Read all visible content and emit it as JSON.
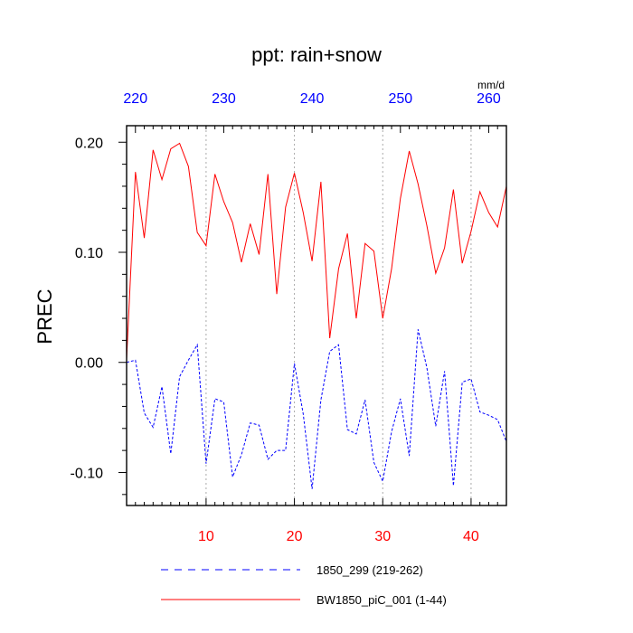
{
  "chart_data": {
    "type": "line",
    "title": "ppt: rain+snow",
    "ylabel": "PREC",
    "units": "mm/d",
    "xlim": [
      1,
      44
    ],
    "ylim": [
      -0.13,
      0.215
    ],
    "grid": "vertical dotted at labeled x ticks",
    "legend": "bottom",
    "bottom_axis": {
      "ticks": [
        10,
        20,
        30,
        40
      ],
      "labels": [
        "10",
        "20",
        "30",
        "40"
      ],
      "color": "#ff0000"
    },
    "top_axis": {
      "offset": 218,
      "ticks": [
        220,
        230,
        240,
        250,
        260
      ],
      "labels": [
        "220",
        "230",
        "240",
        "250",
        "260"
      ],
      "color": "#0000ff"
    },
    "y_axis": {
      "ticks": [
        0.2,
        0.1,
        0.0,
        -0.1
      ],
      "labels": [
        "0.20",
        "0.10",
        "0.00",
        "-0.10"
      ]
    },
    "x": [
      1,
      2,
      3,
      4,
      5,
      6,
      7,
      8,
      9,
      10,
      11,
      12,
      13,
      14,
      15,
      16,
      17,
      18,
      19,
      20,
      21,
      22,
      23,
      24,
      25,
      26,
      27,
      28,
      29,
      30,
      31,
      32,
      33,
      34,
      35,
      36,
      37,
      38,
      39,
      40,
      41,
      42,
      43,
      44
    ],
    "series": [
      {
        "name": "BW1850_piC_001 (1-44)",
        "color": "#ff0000",
        "dash": "solid",
        "values": [
          0.003,
          0.173,
          0.113,
          0.193,
          0.166,
          0.194,
          0.199,
          0.178,
          0.118,
          0.106,
          0.171,
          0.146,
          0.127,
          0.091,
          0.126,
          0.098,
          0.171,
          0.062,
          0.141,
          0.172,
          0.136,
          0.092,
          0.164,
          0.022,
          0.085,
          0.117,
          0.04,
          0.108,
          0.101,
          0.04,
          0.085,
          0.149,
          0.192,
          0.162,
          0.124,
          0.081,
          0.104,
          0.157,
          0.09,
          0.119,
          0.155,
          0.136,
          0.123,
          0.16
        ]
      },
      {
        "name": "1850_299 (219-262)",
        "color": "#0000ff",
        "dash": "dashed",
        "values": [
          0.0,
          0.002,
          -0.046,
          -0.059,
          -0.022,
          -0.083,
          -0.013,
          0.002,
          0.016,
          -0.092,
          -0.033,
          -0.036,
          -0.104,
          -0.084,
          -0.055,
          -0.057,
          -0.088,
          -0.08,
          -0.08,
          -0.001,
          -0.047,
          -0.115,
          -0.034,
          0.01,
          0.016,
          -0.061,
          -0.065,
          -0.034,
          -0.091,
          -0.108,
          -0.063,
          -0.033,
          -0.085,
          0.03,
          -0.005,
          -0.058,
          -0.008,
          -0.112,
          -0.018,
          -0.015,
          -0.045,
          -0.048,
          -0.052,
          -0.072
        ]
      }
    ]
  }
}
